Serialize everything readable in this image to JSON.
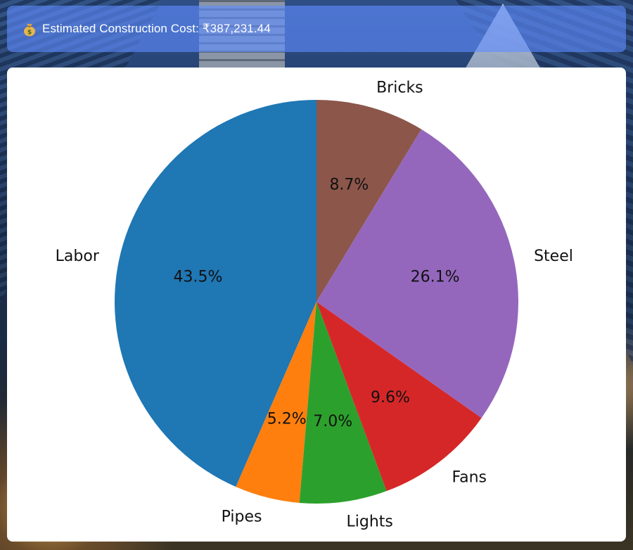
{
  "banner": {
    "icon": "money-bag-icon",
    "text": "Estimated Construction Cost: ₹387,231.44"
  },
  "chart_data": {
    "type": "pie",
    "title": "",
    "start_angle_deg": 90,
    "direction": "counterclockwise",
    "slices": [
      {
        "label": "Labor",
        "pct_label": "43.5%",
        "value": 43.5,
        "color": "#1f77b4"
      },
      {
        "label": "Pipes",
        "pct_label": "5.2%",
        "value": 5.2,
        "color": "#ff7f0e"
      },
      {
        "label": "Lights",
        "pct_label": "7.0%",
        "value": 7.0,
        "color": "#2ca02c"
      },
      {
        "label": "Fans",
        "pct_label": "9.6%",
        "value": 9.6,
        "color": "#d62728"
      },
      {
        "label": "Steel",
        "pct_label": "26.1%",
        "value": 26.1,
        "color": "#9467bd"
      },
      {
        "label": "Bricks",
        "pct_label": "8.7%",
        "value": 8.7,
        "color": "#8c564b"
      }
    ]
  }
}
